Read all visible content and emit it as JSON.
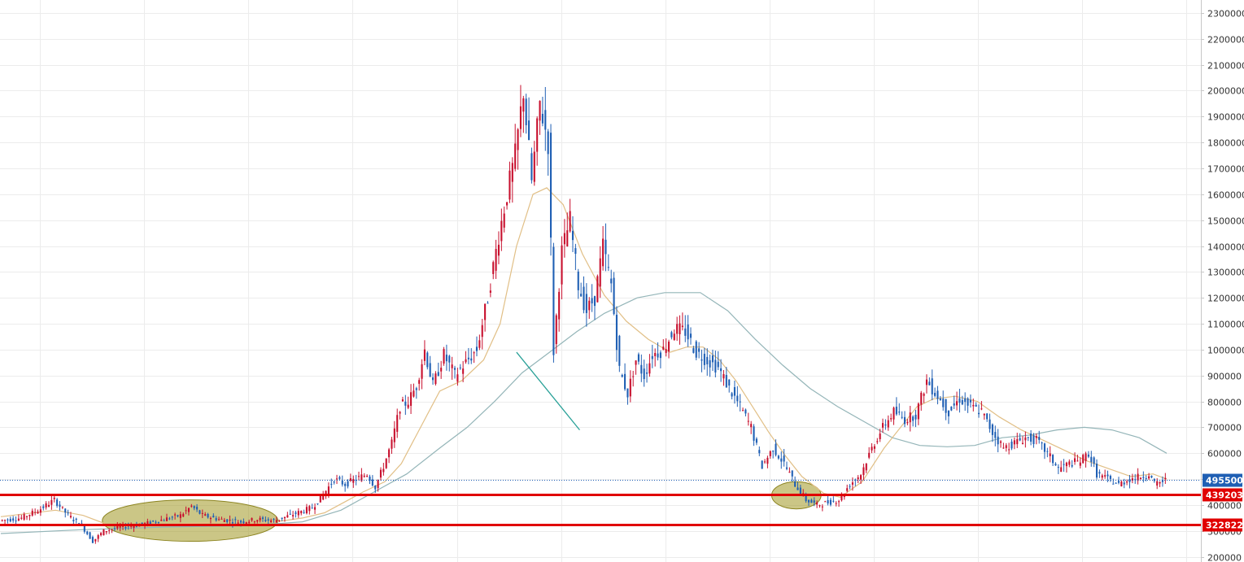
{
  "chart_data": {
    "type": "candlestick",
    "title": "",
    "xlabel": "",
    "ylabel": "",
    "ylim": [
      180000,
      2350000
    ],
    "y_ticks": [
      200000,
      300000,
      400000,
      500000,
      600000,
      700000,
      800000,
      900000,
      1000000,
      1100000,
      1200000,
      1300000,
      1400000,
      1500000,
      1600000,
      1700000,
      1800000,
      1900000,
      2000000,
      2100000,
      2200000,
      2300000
    ],
    "y_tick_labels": [
      "200000",
      "300000",
      "400000",
      "500000",
      "600000",
      "700000",
      "800000",
      "900000",
      "1000000",
      "1100000",
      "1200000",
      "1300000",
      "1400000",
      "1500000",
      "1600000",
      "1700000",
      "1800000",
      "1900000",
      "2000000",
      "2100000",
      "2200000",
      "2300000"
    ],
    "grid": true,
    "y_axis_position": "right",
    "colors": {
      "up": "#c8102e",
      "down": "#1f5fb4",
      "ma_fast": "#e1bf86",
      "ma_slow": "#94b5b8",
      "support": "#e00000",
      "current": "#1f5fb4",
      "highlight": "#a9a036",
      "trendline": "#2aa198"
    },
    "candle_anchors": [
      [
        0,
        340000
      ],
      [
        8,
        350000
      ],
      [
        15,
        385000
      ],
      [
        20,
        420000
      ],
      [
        25,
        360000
      ],
      [
        30,
        320000
      ],
      [
        34,
        260000
      ],
      [
        38,
        300000
      ],
      [
        44,
        315000
      ],
      [
        52,
        325000
      ],
      [
        60,
        345000
      ],
      [
        66,
        360000
      ],
      [
        70,
        395000
      ],
      [
        74,
        360000
      ],
      [
        80,
        345000
      ],
      [
        88,
        335000
      ],
      [
        94,
        345000
      ],
      [
        100,
        340000
      ],
      [
        106,
        360000
      ],
      [
        110,
        375000
      ],
      [
        114,
        390000
      ],
      [
        118,
        440000
      ],
      [
        122,
        500000
      ],
      [
        126,
        480000
      ],
      [
        130,
        500000
      ],
      [
        134,
        520000
      ],
      [
        137,
        470000
      ],
      [
        140,
        550000
      ],
      [
        143,
        640000
      ],
      [
        146,
        780000
      ],
      [
        149,
        800000
      ],
      [
        152,
        860000
      ],
      [
        155,
        1000000
      ],
      [
        158,
        860000
      ],
      [
        162,
        980000
      ],
      [
        166,
        900000
      ],
      [
        170,
        950000
      ],
      [
        174,
        1000000
      ],
      [
        178,
        1200000
      ],
      [
        182,
        1440000
      ],
      [
        185,
        1600000
      ],
      [
        188,
        1750000
      ],
      [
        191,
        2000000
      ],
      [
        194,
        1650000
      ],
      [
        197,
        1950000
      ],
      [
        200,
        1800000
      ],
      [
        202,
        1000000
      ],
      [
        205,
        1380000
      ],
      [
        208,
        1500000
      ],
      [
        211,
        1250000
      ],
      [
        214,
        1150000
      ],
      [
        217,
        1200000
      ],
      [
        220,
        1400000
      ],
      [
        223,
        1250000
      ],
      [
        226,
        920000
      ],
      [
        229,
        830000
      ],
      [
        232,
        960000
      ],
      [
        235,
        900000
      ],
      [
        238,
        980000
      ],
      [
        242,
        1000000
      ],
      [
        246,
        1080000
      ],
      [
        250,
        1070000
      ],
      [
        254,
        990000
      ],
      [
        258,
        960000
      ],
      [
        262,
        930000
      ],
      [
        266,
        850000
      ],
      [
        270,
        780000
      ],
      [
        274,
        700000
      ],
      [
        278,
        550000
      ],
      [
        282,
        620000
      ],
      [
        286,
        560000
      ],
      [
        290,
        480000
      ],
      [
        294,
        420000
      ],
      [
        298,
        400000
      ],
      [
        302,
        410000
      ],
      [
        306,
        420000
      ],
      [
        310,
        480000
      ],
      [
        314,
        520000
      ],
      [
        318,
        620000
      ],
      [
        322,
        700000
      ],
      [
        326,
        760000
      ],
      [
        330,
        730000
      ],
      [
        334,
        750000
      ],
      [
        338,
        880000
      ],
      [
        342,
        820000
      ],
      [
        346,
        760000
      ],
      [
        350,
        810000
      ],
      [
        354,
        780000
      ],
      [
        358,
        760000
      ],
      [
        362,
        680000
      ],
      [
        366,
        620000
      ],
      [
        370,
        640000
      ],
      [
        374,
        660000
      ],
      [
        378,
        650000
      ],
      [
        382,
        600000
      ],
      [
        386,
        540000
      ],
      [
        390,
        560000
      ],
      [
        394,
        570000
      ],
      [
        397,
        600000
      ],
      [
        400,
        520000
      ],
      [
        404,
        500000
      ],
      [
        408,
        480000
      ],
      [
        412,
        500000
      ],
      [
        416,
        510000
      ],
      [
        419,
        520000
      ],
      [
        421,
        480000
      ],
      [
        425,
        495500
      ]
    ],
    "candle_count": 425,
    "ma_fast": [
      [
        0,
        355000
      ],
      [
        20,
        380000
      ],
      [
        30,
        360000
      ],
      [
        40,
        320000
      ],
      [
        50,
        315000
      ],
      [
        60,
        325000
      ],
      [
        70,
        330000
      ],
      [
        80,
        335000
      ],
      [
        90,
        335000
      ],
      [
        100,
        335000
      ],
      [
        110,
        350000
      ],
      [
        118,
        370000
      ],
      [
        125,
        410000
      ],
      [
        132,
        450000
      ],
      [
        140,
        490000
      ],
      [
        146,
        560000
      ],
      [
        154,
        720000
      ],
      [
        160,
        840000
      ],
      [
        168,
        880000
      ],
      [
        176,
        960000
      ],
      [
        182,
        1100000
      ],
      [
        188,
        1400000
      ],
      [
        194,
        1600000
      ],
      [
        199,
        1625000
      ],
      [
        205,
        1560000
      ],
      [
        212,
        1370000
      ],
      [
        220,
        1210000
      ],
      [
        228,
        1110000
      ],
      [
        236,
        1040000
      ],
      [
        244,
        990000
      ],
      [
        250,
        1010000
      ],
      [
        256,
        1010000
      ],
      [
        262,
        960000
      ],
      [
        268,
        880000
      ],
      [
        274,
        780000
      ],
      [
        280,
        680000
      ],
      [
        286,
        590000
      ],
      [
        292,
        510000
      ],
      [
        300,
        445000
      ],
      [
        306,
        430000
      ],
      [
        314,
        490000
      ],
      [
        322,
        620000
      ],
      [
        328,
        700000
      ],
      [
        334,
        780000
      ],
      [
        340,
        810000
      ],
      [
        348,
        820000
      ],
      [
        356,
        800000
      ],
      [
        364,
        740000
      ],
      [
        372,
        690000
      ],
      [
        380,
        650000
      ],
      [
        388,
        610000
      ],
      [
        396,
        570000
      ],
      [
        404,
        540000
      ],
      [
        412,
        510000
      ],
      [
        420,
        520000
      ],
      [
        425,
        500000
      ]
    ],
    "ma_slow": [
      [
        0,
        290000
      ],
      [
        30,
        305000
      ],
      [
        60,
        315000
      ],
      [
        90,
        320000
      ],
      [
        110,
        335000
      ],
      [
        124,
        380000
      ],
      [
        136,
        450000
      ],
      [
        148,
        520000
      ],
      [
        160,
        620000
      ],
      [
        170,
        700000
      ],
      [
        180,
        800000
      ],
      [
        190,
        910000
      ],
      [
        200,
        990000
      ],
      [
        210,
        1070000
      ],
      [
        220,
        1140000
      ],
      [
        232,
        1200000
      ],
      [
        242,
        1220000
      ],
      [
        255,
        1220000
      ],
      [
        265,
        1150000
      ],
      [
        275,
        1040000
      ],
      [
        285,
        940000
      ],
      [
        295,
        850000
      ],
      [
        305,
        780000
      ],
      [
        315,
        720000
      ],
      [
        325,
        660000
      ],
      [
        335,
        630000
      ],
      [
        345,
        625000
      ],
      [
        355,
        630000
      ],
      [
        365,
        660000
      ],
      [
        375,
        670000
      ],
      [
        385,
        690000
      ],
      [
        395,
        700000
      ],
      [
        405,
        690000
      ],
      [
        415,
        660000
      ],
      [
        425,
        600000
      ]
    ],
    "horizontal_lines": [
      {
        "value": 439203,
        "label": "439203",
        "style": "solid"
      },
      {
        "value": 322822,
        "label": "322822",
        "style": "solid"
      },
      {
        "value": 495500,
        "label": "495500",
        "style": "dotted"
      }
    ],
    "highlights": [
      {
        "from_index": 37,
        "to_index": 101,
        "ylim": [
          260000,
          420000
        ]
      },
      {
        "from_index": 281,
        "to_index": 299,
        "ylim": [
          385000,
          490000
        ]
      }
    ],
    "trendline": {
      "from": [
        188,
        990000
      ],
      "to": [
        211,
        690000
      ]
    }
  }
}
